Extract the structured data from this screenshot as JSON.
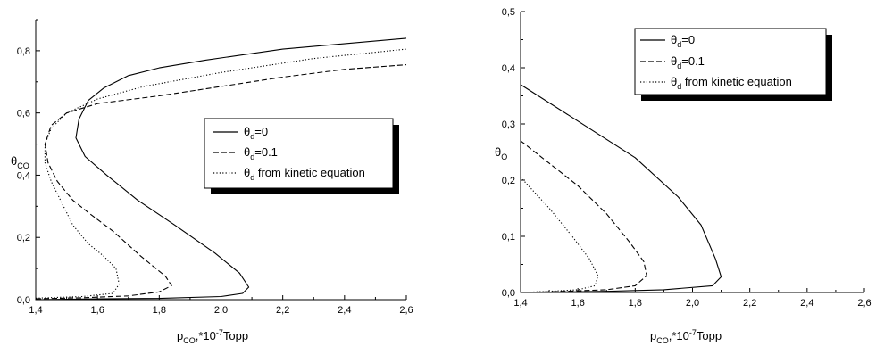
{
  "chart_data": [
    {
      "type": "line",
      "x_ticks": [
        "1,4",
        "1,6",
        "1,8",
        "2,0",
        "2,2",
        "2,4",
        "2,6"
      ],
      "y_ticks": [
        "0,0",
        "0,2",
        "0,4",
        "0,6",
        "0,8"
      ],
      "xlim": [
        1.4,
        2.6
      ],
      "ylim": [
        0.0,
        0.9
      ],
      "grid": false,
      "legend_position": "center-right",
      "xlabel": {
        "main": "p",
        "sub": "CO",
        "rest": ",*10",
        "sup": "-7",
        "unit": "Topp"
      },
      "ylabel": {
        "main": "θ",
        "sub": "CO"
      },
      "series": [
        {
          "name": "θd=0",
          "label_main": "θ",
          "label_sub": "d",
          "label_rest": "=0",
          "style": "solid",
          "points": [
            [
              1.4,
              0.0
            ],
            [
              1.6,
              0.003
            ],
            [
              1.8,
              0.004
            ],
            [
              2.0,
              0.01
            ],
            [
              2.07,
              0.02
            ],
            [
              2.09,
              0.04
            ],
            [
              2.06,
              0.085
            ],
            [
              1.98,
              0.15
            ],
            [
              1.85,
              0.24
            ],
            [
              1.73,
              0.32
            ],
            [
              1.63,
              0.4
            ],
            [
              1.56,
              0.46
            ],
            [
              1.53,
              0.52
            ],
            [
              1.54,
              0.58
            ],
            [
              1.57,
              0.64
            ],
            [
              1.62,
              0.68
            ],
            [
              1.7,
              0.72
            ],
            [
              1.8,
              0.745
            ],
            [
              1.95,
              0.77
            ],
            [
              2.2,
              0.805
            ],
            [
              2.6,
              0.84
            ]
          ]
        },
        {
          "name": "θd=0.1",
          "label_main": "θ",
          "label_sub": "d",
          "label_rest": "=0.1",
          "style": "dashed",
          "points": [
            [
              1.4,
              0.003
            ],
            [
              1.55,
              0.006
            ],
            [
              1.7,
              0.012
            ],
            [
              1.8,
              0.025
            ],
            [
              1.84,
              0.045
            ],
            [
              1.82,
              0.075
            ],
            [
              1.74,
              0.14
            ],
            [
              1.65,
              0.22
            ],
            [
              1.57,
              0.28
            ],
            [
              1.52,
              0.32
            ],
            [
              1.47,
              0.38
            ],
            [
              1.44,
              0.44
            ],
            [
              1.43,
              0.5
            ],
            [
              1.45,
              0.56
            ],
            [
              1.5,
              0.6
            ],
            [
              1.6,
              0.63
            ],
            [
              1.8,
              0.655
            ],
            [
              2.0,
              0.685
            ],
            [
              2.2,
              0.715
            ],
            [
              2.4,
              0.74
            ],
            [
              2.6,
              0.755
            ]
          ]
        },
        {
          "name": "θd from kinetic equation",
          "label_main": "θ",
          "label_sub": "d",
          "label_rest": " from kinetic equation",
          "style": "dotted",
          "points": [
            [
              1.4,
              0.005
            ],
            [
              1.55,
              0.01
            ],
            [
              1.65,
              0.02
            ],
            [
              1.67,
              0.05
            ],
            [
              1.66,
              0.1
            ],
            [
              1.62,
              0.14
            ],
            [
              1.57,
              0.18
            ],
            [
              1.52,
              0.24
            ],
            [
              1.48,
              0.32
            ],
            [
              1.45,
              0.38
            ],
            [
              1.43,
              0.44
            ],
            [
              1.43,
              0.5
            ],
            [
              1.45,
              0.55
            ],
            [
              1.5,
              0.6
            ],
            [
              1.6,
              0.645
            ],
            [
              1.75,
              0.685
            ],
            [
              2.0,
              0.73
            ],
            [
              2.3,
              0.775
            ],
            [
              2.6,
              0.805
            ]
          ]
        }
      ]
    },
    {
      "type": "line",
      "x_ticks": [
        "1,4",
        "1,6",
        "1,8",
        "2,0",
        "2,2",
        "2,4",
        "2,6"
      ],
      "y_ticks": [
        "0,0",
        "0,1",
        "0,2",
        "0,3",
        "0,4",
        "0,5"
      ],
      "xlim": [
        1.4,
        2.6
      ],
      "ylim": [
        0.0,
        0.5
      ],
      "grid": false,
      "legend_position": "top-left",
      "xlabel": {
        "main": "p",
        "sub": "CO",
        "rest": ",*10",
        "sup": "-7",
        "unit": "Topp"
      },
      "ylabel": {
        "main": "θ",
        "sub": "O"
      },
      "series": [
        {
          "name": "θd=0",
          "label_main": "θ",
          "label_sub": "d",
          "label_rest": "=0",
          "style": "solid",
          "points": [
            [
              1.4,
              0.37
            ],
            [
              1.6,
              0.305
            ],
            [
              1.8,
              0.24
            ],
            [
              1.95,
              0.17
            ],
            [
              2.03,
              0.12
            ],
            [
              2.08,
              0.06
            ],
            [
              2.1,
              0.028
            ],
            [
              2.07,
              0.012
            ],
            [
              1.9,
              0.005
            ],
            [
              1.7,
              0.002
            ],
            [
              1.4,
              0.0
            ],
            [
              2.6,
              0.0
            ]
          ]
        },
        {
          "name": "θd=0.1",
          "label_main": "θ",
          "label_sub": "d",
          "label_rest": "=0.1",
          "style": "dashed",
          "points": [
            [
              1.4,
              0.27
            ],
            [
              1.5,
              0.23
            ],
            [
              1.6,
              0.19
            ],
            [
              1.7,
              0.14
            ],
            [
              1.78,
              0.09
            ],
            [
              1.83,
              0.055
            ],
            [
              1.84,
              0.03
            ],
            [
              1.8,
              0.012
            ],
            [
              1.7,
              0.005
            ],
            [
              1.55,
              0.002
            ],
            [
              1.4,
              0.0
            ]
          ]
        },
        {
          "name": "θd from kinetic equation",
          "label_main": "θ",
          "label_sub": "d",
          "label_rest": " from kinetic equation",
          "style": "dotted",
          "points": [
            [
              1.4,
              0.205
            ],
            [
              1.5,
              0.15
            ],
            [
              1.58,
              0.1
            ],
            [
              1.64,
              0.06
            ],
            [
              1.67,
              0.03
            ],
            [
              1.66,
              0.012
            ],
            [
              1.6,
              0.005
            ],
            [
              1.5,
              0.002
            ],
            [
              1.4,
              0.0
            ]
          ]
        }
      ]
    }
  ]
}
